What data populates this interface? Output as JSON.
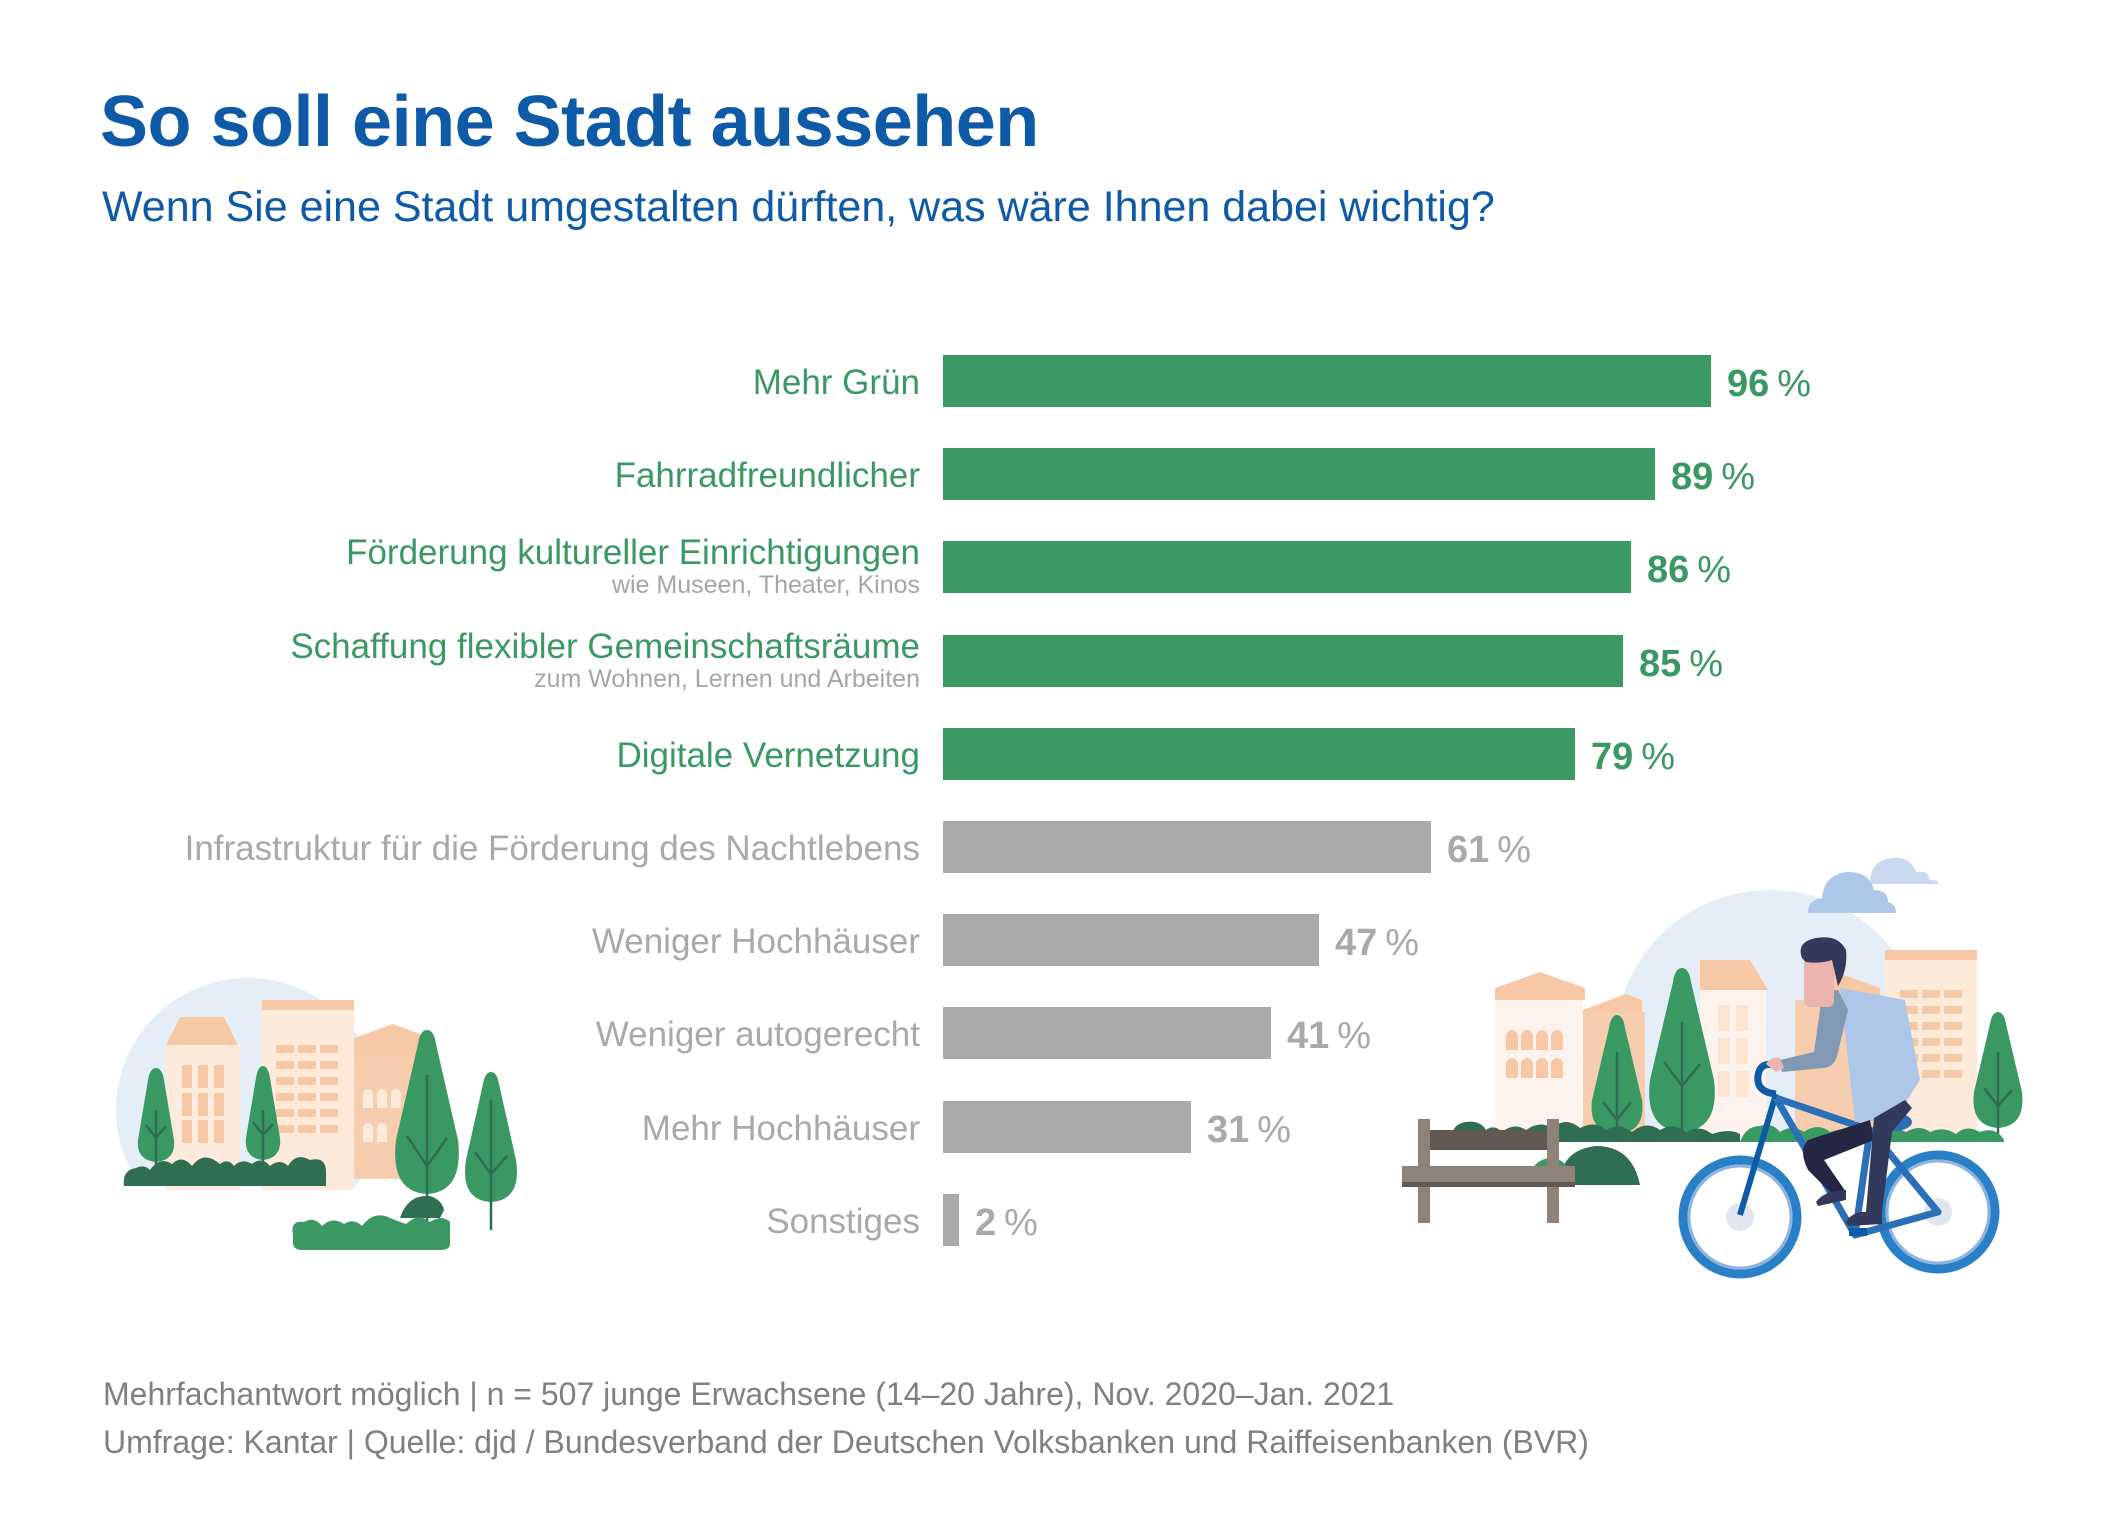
{
  "title": "So soll eine Stadt aussehen",
  "subtitle": "Wenn Sie eine Stadt umgestalten dürften, was wäre Ihnen dabei wichtig?",
  "colors": {
    "title": "#0e5aa7",
    "highlight": "#3a9963",
    "muted": "#a9a9a9",
    "footer": "#808080"
  },
  "chart_data": {
    "type": "bar",
    "orientation": "horizontal",
    "title": "So soll eine Stadt aussehen",
    "subtitle": "Wenn Sie eine Stadt umgestalten dürften, was wäre Ihnen dabei wichtig?",
    "xlabel": "",
    "ylabel": "",
    "unit": "%",
    "xlim": [
      0,
      100
    ],
    "grid": false,
    "legend": "none",
    "categories": [
      "Mehr Grün",
      "Fahrradfreundlicher",
      "Förderung kultureller Einrichtigungen",
      "Schaffung flexibler Gemeinschaftsräume",
      "Digitale Vernetzung",
      "Infrastruktur für die Förderung des Nachtlebens",
      "Weniger Hochhäuser",
      "Weniger autogerecht",
      "Mehr Hochhäuser",
      "Sonstiges"
    ],
    "sublabels": [
      "",
      "",
      "wie Museen, Theater, Kinos",
      "zum Wohnen, Lernen und Arbeiten",
      "",
      "",
      "",
      "",
      "",
      ""
    ],
    "values": [
      96,
      89,
      86,
      85,
      79,
      61,
      47,
      41,
      31,
      2
    ],
    "highlighted": [
      true,
      true,
      true,
      true,
      true,
      false,
      false,
      false,
      false,
      false
    ],
    "value_suffix": "%"
  },
  "footer": {
    "line1": "Mehrfachantwort möglich | n = 507 junge Erwachsene (14–20 Jahre), Nov. 2020–Jan. 2021",
    "line2": "Umfrage: Kantar | Quelle: djd / Bundesverband der Deutschen Volksbanken und Raiffeisenbanken (BVR)"
  },
  "illustrations": {
    "left": "city-buildings-with-trees",
    "right": "cyclist-in-park-with-bench"
  }
}
